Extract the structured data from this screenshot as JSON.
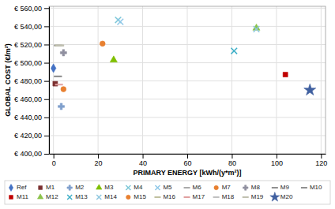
{
  "chart_data": {
    "type": "scatter",
    "xlabel": "PRIMARY ENERGY [kWh/(y*m²)]",
    "ylabel": "GLOBAL COST (€/m²)",
    "xlim": [
      -2,
      122
    ],
    "ylim": [
      400,
      562
    ],
    "xticks": [
      0,
      20,
      40,
      60,
      80,
      100,
      120
    ],
    "yticks": [
      {
        "value": 400,
        "label": "€ 400,00"
      },
      {
        "value": 420,
        "label": "€ 420,00"
      },
      {
        "value": 440,
        "label": "€ 440,00"
      },
      {
        "value": 460,
        "label": "€ 460,00"
      },
      {
        "value": 480,
        "label": "€ 480,00"
      },
      {
        "value": 500,
        "label": "€ 500,00"
      },
      {
        "value": 520,
        "label": "€ 520,00"
      },
      {
        "value": 540,
        "label": "€ 540,00"
      },
      {
        "value": 560,
        "label": "€ 560,00"
      }
    ],
    "grid": true,
    "legend": "bottom",
    "series": [
      {
        "name": "Ref",
        "color": "#4472C4",
        "marker": "diamond",
        "x": [
          0
        ],
        "values": [
          494
        ]
      },
      {
        "name": "M1",
        "color": "#7B3030",
        "marker": "square",
        "x": [
          0.8
        ],
        "values": [
          477
        ]
      },
      {
        "name": "M2",
        "color": "#7F9FCC",
        "marker": "plus",
        "x": [
          3.5
        ],
        "values": [
          452
        ]
      },
      {
        "name": "M3",
        "color": "#7FBF00",
        "marker": "triangle",
        "x": [
          27
        ],
        "values": [
          503
        ]
      },
      {
        "name": "M4",
        "color": "#7FC8D8",
        "marker": "x",
        "x": [
          29
        ],
        "values": [
          547
        ]
      },
      {
        "name": "M5",
        "color": "#8FC8E8",
        "marker": "x",
        "x": [
          30
        ],
        "values": [
          545
        ]
      },
      {
        "name": "M6",
        "color": "#AAAAAA",
        "marker": "hline",
        "x": [
          2.0
        ],
        "values": [
          485
        ]
      },
      {
        "name": "M7",
        "color": "#E88030",
        "marker": "circle",
        "x": [
          4.5
        ],
        "values": [
          471
        ]
      },
      {
        "name": "M8",
        "color": "#9090A0",
        "marker": "plus",
        "x": [
          4.5
        ],
        "values": [
          511
        ]
      },
      {
        "name": "M9",
        "color": "#909090",
        "marker": "hline",
        "x": [
          2.0
        ],
        "values": [
          485
        ]
      },
      {
        "name": "M10",
        "color": "#909090",
        "marker": "hline",
        "x": [
          2.0
        ],
        "values": [
          519
        ]
      },
      {
        "name": "M11",
        "color": "#C00000",
        "marker": "square",
        "x": [
          104
        ],
        "values": [
          487
        ]
      },
      {
        "name": "M12",
        "color": "#8BC34A",
        "marker": "triangle",
        "x": [
          91
        ],
        "values": [
          538
        ]
      },
      {
        "name": "M13",
        "color": "#40B0C8",
        "marker": "x",
        "x": [
          81
        ],
        "values": [
          513
        ]
      },
      {
        "name": "M14",
        "color": "#90C8E0",
        "marker": "x",
        "x": [
          91
        ],
        "values": [
          537
        ]
      },
      {
        "name": "M15",
        "color": "#E88030",
        "marker": "circle",
        "x": [
          22
        ],
        "values": [
          521
        ]
      },
      {
        "name": "M16",
        "color": "#C0C0A0",
        "marker": "hline",
        "x": [
          2.5
        ],
        "values": [
          519
        ]
      },
      {
        "name": "M17",
        "color": "#E0A0A0",
        "marker": "hline",
        "x": [
          2.5
        ],
        "values": [
          476
        ]
      },
      {
        "name": "M18",
        "color": "#C0C0C0",
        "marker": "hline",
        "x": [
          3.0
        ],
        "values": [
          519
        ]
      },
      {
        "name": "M19",
        "color": "#C0C0B0",
        "marker": "hline",
        "x": [
          3.0
        ],
        "values": [
          519
        ]
      },
      {
        "name": "M20",
        "color": "#4060A0",
        "marker": "star",
        "x": [
          115
        ],
        "values": [
          470
        ]
      }
    ]
  }
}
